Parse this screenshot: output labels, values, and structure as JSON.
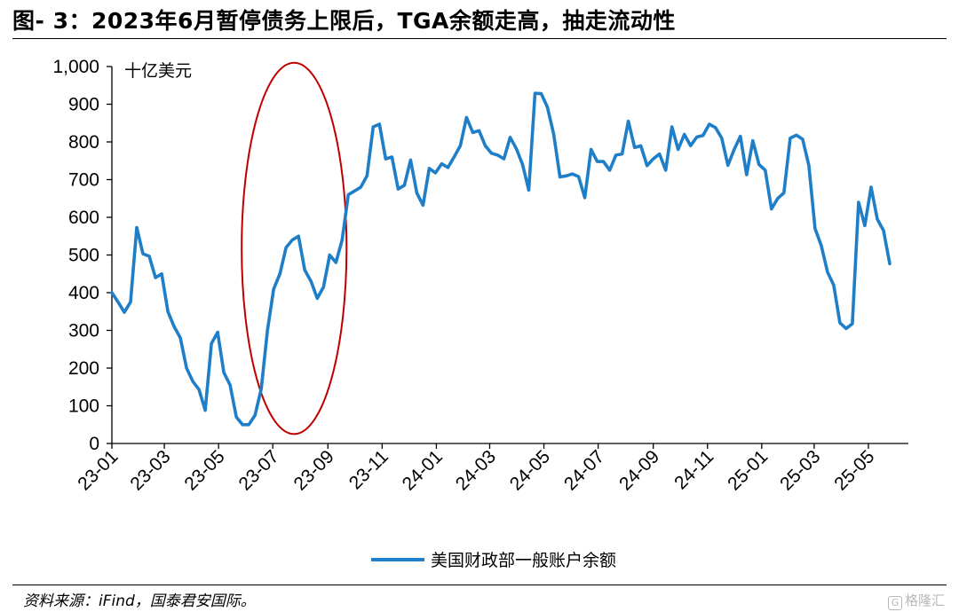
{
  "title": "图- 3：2023年6月暂停债务上限后，TGA余额走高，抽走流动性",
  "source": "资料来源：iFind，国泰君安国际。",
  "watermark": "格隆汇",
  "colors": {
    "series": "#1f7ec8",
    "highlight_ellipse": "#c00000",
    "axis": "#000000"
  },
  "chart_data": {
    "type": "line",
    "title": "",
    "xlabel": "",
    "ylabel": "十亿美元",
    "y_unit_label": "十亿美元",
    "ylim": [
      0,
      1000
    ],
    "yticks": [
      0,
      100,
      200,
      300,
      400,
      500,
      600,
      700,
      800,
      900,
      1000
    ],
    "ytick_labels": [
      "0",
      "100",
      "200",
      "300",
      "400",
      "500",
      "600",
      "700",
      "800",
      "900",
      "1,000"
    ],
    "xlim": [
      "2023-01-01",
      "2025-06-15"
    ],
    "xticks": [
      "2023-01-01",
      "2023-03-01",
      "2023-05-01",
      "2023-07-01",
      "2023-09-01",
      "2023-11-01",
      "2024-01-01",
      "2024-03-01",
      "2024-05-01",
      "2024-07-01",
      "2024-09-01",
      "2024-11-01",
      "2025-01-01",
      "2025-03-01",
      "2025-05-01"
    ],
    "xtick_labels": [
      "23-01",
      "23-03",
      "23-05",
      "23-07",
      "23-09",
      "23-11",
      "24-01",
      "24-03",
      "24-05",
      "24-07",
      "24-09",
      "24-11",
      "25-01",
      "25-03",
      "25-05"
    ],
    "grid": false,
    "legend_position": "bottom-center",
    "highlight": {
      "shape": "ellipse",
      "x_range": [
        "2023-05-27",
        "2023-09-22"
      ],
      "y_range": [
        25,
        1010
      ]
    },
    "series": [
      {
        "name": "美国财政部一般账户余额",
        "points": [
          [
            "2023-01-01",
            400
          ],
          [
            "2023-01-08",
            375
          ],
          [
            "2023-01-15",
            348
          ],
          [
            "2023-01-22",
            375
          ],
          [
            "2023-01-29",
            573
          ],
          [
            "2023-02-05",
            503
          ],
          [
            "2023-02-12",
            497
          ],
          [
            "2023-02-19",
            440
          ],
          [
            "2023-02-26",
            450
          ],
          [
            "2023-03-05",
            350
          ],
          [
            "2023-03-12",
            310
          ],
          [
            "2023-03-19",
            280
          ],
          [
            "2023-03-26",
            200
          ],
          [
            "2023-04-02",
            165
          ],
          [
            "2023-04-09",
            143
          ],
          [
            "2023-04-16",
            88
          ],
          [
            "2023-04-23",
            265
          ],
          [
            "2023-04-30",
            295
          ],
          [
            "2023-05-07",
            188
          ],
          [
            "2023-05-14",
            155
          ],
          [
            "2023-05-21",
            70
          ],
          [
            "2023-05-28",
            50
          ],
          [
            "2023-06-04",
            50
          ],
          [
            "2023-06-11",
            75
          ],
          [
            "2023-06-18",
            145
          ],
          [
            "2023-06-25",
            300
          ],
          [
            "2023-07-02",
            410
          ],
          [
            "2023-07-09",
            450
          ],
          [
            "2023-07-16",
            520
          ],
          [
            "2023-07-23",
            540
          ],
          [
            "2023-07-30",
            550
          ],
          [
            "2023-08-06",
            460
          ],
          [
            "2023-08-13",
            430
          ],
          [
            "2023-08-20",
            385
          ],
          [
            "2023-08-27",
            415
          ],
          [
            "2023-09-03",
            500
          ],
          [
            "2023-09-10",
            480
          ],
          [
            "2023-09-17",
            540
          ],
          [
            "2023-09-24",
            660
          ],
          [
            "2023-10-01",
            670
          ],
          [
            "2023-10-08",
            680
          ],
          [
            "2023-10-15",
            710
          ],
          [
            "2023-10-22",
            840
          ],
          [
            "2023-10-29",
            847
          ],
          [
            "2023-11-05",
            755
          ],
          [
            "2023-11-12",
            760
          ],
          [
            "2023-11-19",
            675
          ],
          [
            "2023-11-26",
            685
          ],
          [
            "2023-12-03",
            752
          ],
          [
            "2023-12-10",
            665
          ],
          [
            "2023-12-17",
            632
          ],
          [
            "2023-12-24",
            730
          ],
          [
            "2023-12-31",
            718
          ],
          [
            "2024-01-07",
            742
          ],
          [
            "2024-01-14",
            732
          ],
          [
            "2024-01-21",
            760
          ],
          [
            "2024-01-28",
            790
          ],
          [
            "2024-02-04",
            865
          ],
          [
            "2024-02-11",
            825
          ],
          [
            "2024-02-18",
            830
          ],
          [
            "2024-02-25",
            790
          ],
          [
            "2024-03-03",
            770
          ],
          [
            "2024-03-10",
            765
          ],
          [
            "2024-03-17",
            755
          ],
          [
            "2024-03-24",
            812
          ],
          [
            "2024-03-31",
            782
          ],
          [
            "2024-04-07",
            740
          ],
          [
            "2024-04-14",
            672
          ],
          [
            "2024-04-21",
            929
          ],
          [
            "2024-04-28",
            928
          ],
          [
            "2024-05-05",
            892
          ],
          [
            "2024-05-12",
            820
          ],
          [
            "2024-05-19",
            707
          ],
          [
            "2024-05-26",
            710
          ],
          [
            "2024-06-02",
            715
          ],
          [
            "2024-06-09",
            708
          ],
          [
            "2024-06-16",
            652
          ],
          [
            "2024-06-23",
            780
          ],
          [
            "2024-06-30",
            748
          ],
          [
            "2024-07-07",
            748
          ],
          [
            "2024-07-14",
            725
          ],
          [
            "2024-07-21",
            765
          ],
          [
            "2024-07-28",
            768
          ],
          [
            "2024-08-04",
            855
          ],
          [
            "2024-08-11",
            785
          ],
          [
            "2024-08-18",
            790
          ],
          [
            "2024-08-25",
            737
          ],
          [
            "2024-09-01",
            755
          ],
          [
            "2024-09-08",
            768
          ],
          [
            "2024-09-15",
            725
          ],
          [
            "2024-09-22",
            840
          ],
          [
            "2024-09-29",
            780
          ],
          [
            "2024-10-06",
            820
          ],
          [
            "2024-10-13",
            790
          ],
          [
            "2024-10-20",
            813
          ],
          [
            "2024-10-27",
            817
          ],
          [
            "2024-11-03",
            847
          ],
          [
            "2024-11-10",
            838
          ],
          [
            "2024-11-17",
            810
          ],
          [
            "2024-11-24",
            738
          ],
          [
            "2024-12-01",
            780
          ],
          [
            "2024-12-08",
            815
          ],
          [
            "2024-12-15",
            713
          ],
          [
            "2024-12-22",
            803
          ],
          [
            "2024-12-29",
            740
          ],
          [
            "2025-01-05",
            725
          ],
          [
            "2025-01-12",
            622
          ],
          [
            "2025-01-19",
            650
          ],
          [
            "2025-01-26",
            665
          ],
          [
            "2025-02-02",
            810
          ],
          [
            "2025-02-09",
            818
          ],
          [
            "2025-02-16",
            807
          ],
          [
            "2025-02-23",
            738
          ],
          [
            "2025-03-02",
            570
          ],
          [
            "2025-03-09",
            525
          ],
          [
            "2025-03-16",
            455
          ],
          [
            "2025-03-23",
            420
          ],
          [
            "2025-03-30",
            320
          ],
          [
            "2025-04-06",
            305
          ],
          [
            "2025-04-13",
            318
          ],
          [
            "2025-04-20",
            640
          ],
          [
            "2025-04-27",
            578
          ],
          [
            "2025-05-04",
            680
          ],
          [
            "2025-05-11",
            595
          ],
          [
            "2025-05-18",
            565
          ],
          [
            "2025-05-25",
            477
          ]
        ]
      }
    ]
  }
}
